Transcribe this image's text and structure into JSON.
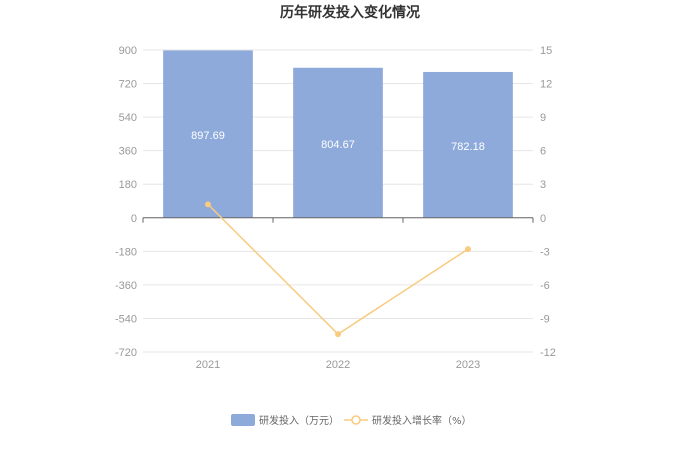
{
  "chart_data": {
    "type": "bar",
    "title": "历年研发投入变化情况",
    "categories": [
      "2021",
      "2022",
      "2023"
    ],
    "series": [
      {
        "name": "研发投入（万元）",
        "type": "bar",
        "axis": "left",
        "values": [
          897.69,
          804.67,
          782.18
        ],
        "data_labels": [
          "897.69",
          "804.67",
          "782.18"
        ],
        "color": "#8eaadb"
      },
      {
        "name": "研发投入增长率（%）",
        "type": "line",
        "axis": "right",
        "values": [
          1.2,
          -10.4,
          -2.8
        ],
        "color": "#f8cb7f"
      }
    ],
    "y_left": {
      "min": -720,
      "max": 900,
      "ticks": [
        900,
        720,
        540,
        360,
        180,
        0,
        -180,
        -360,
        -540,
        -720
      ]
    },
    "y_right": {
      "min": -12,
      "max": 15,
      "ticks": [
        15,
        12,
        9,
        6,
        3,
        0,
        -3,
        -6,
        -9,
        -12
      ]
    },
    "grid": true,
    "legend_position": "bottom"
  }
}
